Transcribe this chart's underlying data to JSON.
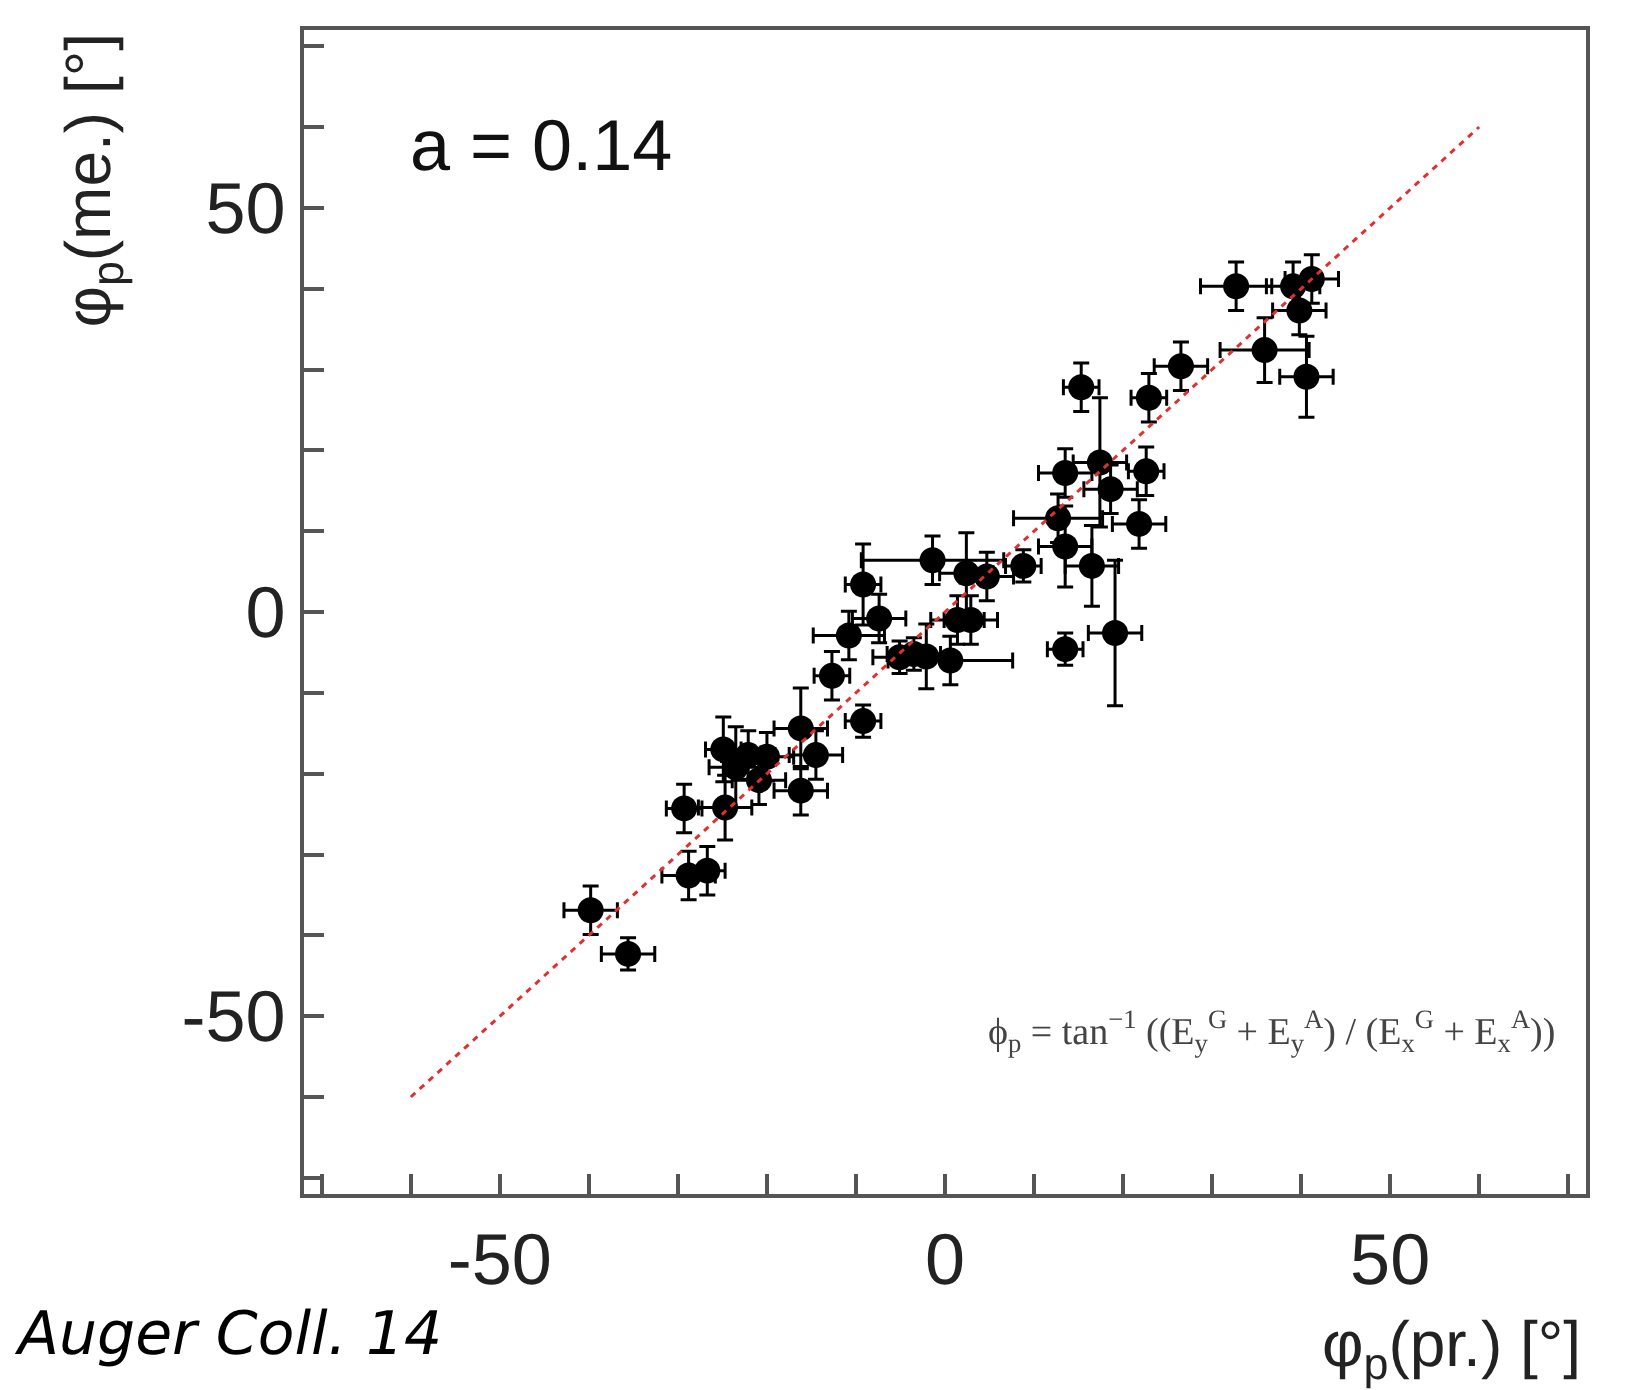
{
  "chart_data": {
    "type": "scatter",
    "xlabel": "φ$_{p}$(pr.) [°]",
    "ylabel": "φ$_{p}$(me.) [°]",
    "annotations": [
      "a = 0.14",
      "ϕ$_{p}$ = tan$^{−1}$ ((E$_{y}$$^{G}$ + E$_{y}$$^{A}$) / (E$_{x}$$^{G}$ + E$_{x}$$^{A}$))",
      "Auger Coll. 14"
    ],
    "xlim": [
      -72,
      72
    ],
    "ylim": [
      -72,
      72
    ],
    "xticks": [
      {
        "value": -70,
        "label": null
      },
      {
        "value": -60,
        "label": null
      },
      -50,
      {
        "value": -40,
        "label": null
      },
      {
        "value": -30,
        "label": null
      },
      {
        "value": -20,
        "label": null
      },
      {
        "value": -10,
        "label": null
      },
      0,
      {
        "value": 10,
        "label": null
      },
      {
        "value": 20,
        "label": null
      },
      {
        "value": 30,
        "label": null
      },
      {
        "value": 40,
        "label": null
      },
      50,
      {
        "value": 60,
        "label": null
      },
      {
        "value": 70,
        "label": null
      }
    ],
    "yticks": [
      {
        "value": -70,
        "label": null
      },
      {
        "value": -60,
        "label": null
      },
      -50,
      {
        "value": -40,
        "label": null
      },
      {
        "value": -30,
        "label": null
      },
      {
        "value": -20,
        "label": null
      },
      {
        "value": -10,
        "label": null
      },
      0,
      {
        "value": 10,
        "label": null
      },
      {
        "value": 20,
        "label": null
      },
      {
        "value": 30,
        "label": null
      },
      {
        "value": 40,
        "label": null
      },
      50,
      {
        "value": 60,
        "label": null
      },
      {
        "value": 70,
        "label": null
      }
    ],
    "series": [
      {
        "color": "#000000",
        "marker": "circle",
        "x": [
          -39.8,
          -35.6,
          -29.3,
          -28.8,
          -26.7,
          -24.9,
          -24.7,
          -23.5,
          -22.1,
          -20.9,
          -20.0,
          -16.2,
          -16.2,
          -14.5,
          -12.7,
          -9.2,
          -10.8,
          -9.2,
          -7.4,
          -5.1,
          -3.5,
          -2.1,
          0.6,
          -1.4,
          1.4,
          2.9,
          2.4,
          4.7,
          8.8,
          12.7,
          13.5,
          13.5,
          13.5,
          15.3,
          16.5,
          17.4,
          18.6,
          19.1,
          21.8,
          22.6,
          22.9,
          26.5,
          32.7,
          35.9,
          39.1,
          39.8,
          40.6,
          41.2
        ],
        "values": [
          -36.9,
          -42.3,
          -24.3,
          -32.6,
          -32.0,
          -17.0,
          -24.2,
          -19.2,
          -17.7,
          -20.8,
          -17.9,
          -14.4,
          -22.1,
          -17.7,
          -7.9,
          -13.5,
          -2.9,
          3.4,
          -0.8,
          -5.6,
          -5.2,
          -5.5,
          -6.0,
          6.4,
          -1.0,
          -1.0,
          4.8,
          4.4,
          5.7,
          11.6,
          17.2,
          8.1,
          -4.6,
          27.8,
          5.7,
          18.5,
          15.2,
          -2.6,
          10.9,
          17.4,
          26.5,
          30.4,
          40.3,
          32.4,
          40.3,
          37.3,
          29.1,
          41.2
        ],
        "errors": [
          3,
          2,
          3,
          3,
          3,
          4,
          4,
          5,
          3,
          3,
          3,
          5,
          3,
          3,
          3,
          2,
          3,
          5,
          3,
          2,
          2,
          4,
          3,
          3,
          3,
          3,
          5,
          3,
          2,
          3,
          3,
          5,
          2,
          3,
          5,
          8,
          3,
          9,
          3,
          3,
          3,
          3,
          3,
          4,
          3,
          3,
          5,
          3
        ],
        "xerrors": [
          3,
          3,
          2,
          3,
          2,
          2,
          3,
          3,
          3,
          3,
          3,
          3,
          3,
          3,
          2,
          2,
          4,
          2,
          3,
          3,
          3,
          3,
          7,
          8,
          3,
          3,
          3,
          3,
          2,
          5,
          3,
          3,
          2,
          2,
          3,
          3,
          3,
          3,
          3,
          2,
          2,
          3,
          4,
          5,
          3,
          3,
          3,
          3
        ]
      },
      {
        "type": "line",
        "color": "#e03030",
        "line_style": "dotted",
        "marker": "none",
        "x": [
          -60,
          60
        ],
        "values": [
          -60,
          60
        ]
      }
    ]
  }
}
